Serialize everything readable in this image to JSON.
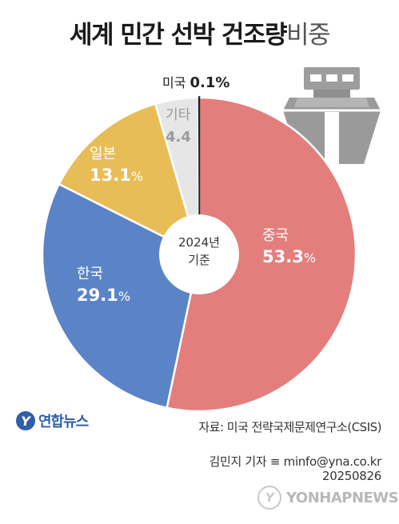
{
  "title": {
    "bold": "세계 민간 선박 건조량",
    "light": "비중"
  },
  "chart_data": {
    "type": "pie",
    "title": "세계 민간 선박 건조량 비중",
    "center_label": [
      "2024년",
      "기준"
    ],
    "unit": "%",
    "slices": [
      {
        "name": "중국",
        "value": 53.3,
        "label": "53.3",
        "color": "#e37e7c"
      },
      {
        "name": "한국",
        "value": 29.1,
        "label": "29.1",
        "color": "#5b84c6"
      },
      {
        "name": "일본",
        "value": 13.1,
        "label": "13.1",
        "color": "#e8bd57"
      },
      {
        "name": "기타",
        "value": 4.4,
        "label": "4.4",
        "color": "#e6e6e6"
      },
      {
        "name": "미국",
        "value": 0.1,
        "label": "0.1",
        "color": "#222222"
      }
    ]
  },
  "source": "자료: 미국 전략국제문제연구소(CSIS)",
  "credit": {
    "author": "김민지 기자 ≡ minfo@yna.co.kr",
    "date": "20250826"
  },
  "logo": {
    "mark": "Y",
    "text": "연합뉴스"
  },
  "watermark": {
    "mark": "Y",
    "text": "YONHAPNEWS"
  },
  "icon": "ship-icon"
}
